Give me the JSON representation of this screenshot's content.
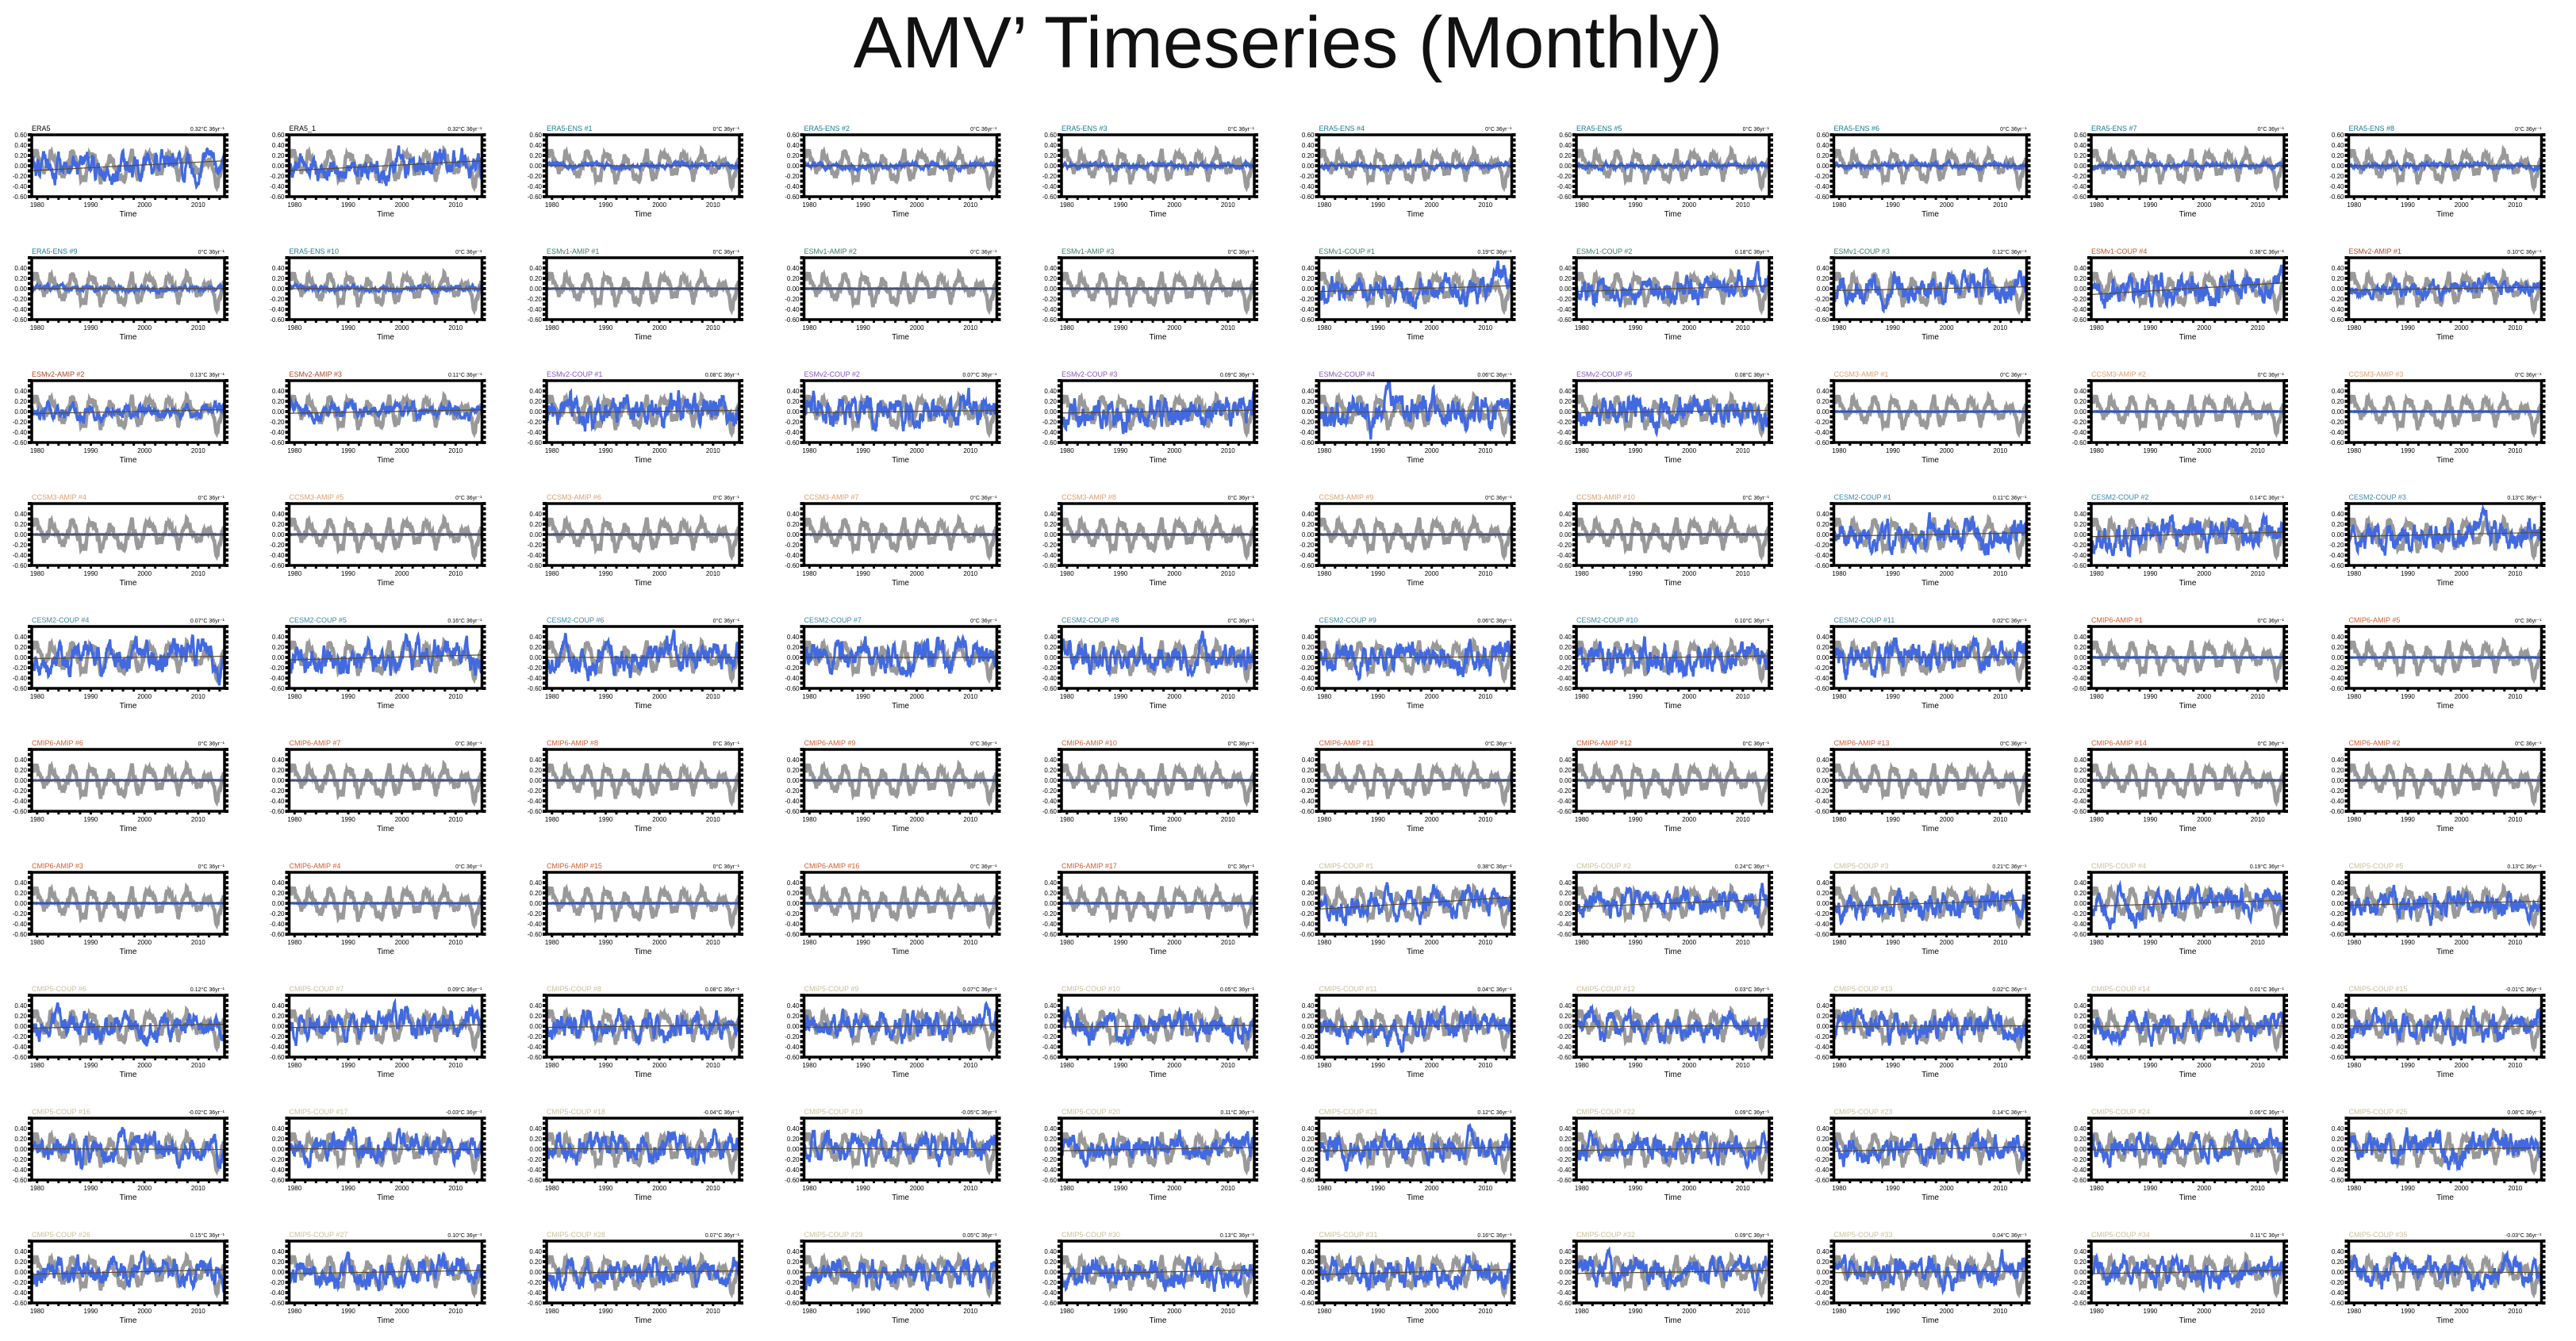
{
  "title": "AMV’ Timeseries (Monthly)",
  "colors": {
    "observed": "#999999",
    "model": "#4169e1",
    "trend": "#5a4b2c",
    "axis": "#000000",
    "label_default": "#000000",
    "label_ens": "#1b7a8c",
    "label_esm1": "#3b7b6a",
    "label_esm1_coup": "#c0582a",
    "label_esm2_amip": "#b0452a",
    "label_esm2_coup": "#8a55c0",
    "label_ccsm": "#d8a070",
    "label_cesm2": "#3c88a8",
    "label_cmip6": "#d85a30",
    "label_cmip5": "#c8c09a"
  },
  "chart_data": {
    "type": "line",
    "layout": "small-multiples-10x10",
    "xlabel": "Time",
    "xticks": [
      1980,
      1990,
      2000,
      2010
    ],
    "xlim": [
      1979,
      2014.9
    ],
    "yticks_top": [
      "0.60",
      "0.40",
      "0.20",
      "0.00",
      "-0.20",
      "-0.40",
      "-0.60"
    ],
    "yticks": [
      "0.40",
      "0.20",
      "0.00",
      "-0.20",
      "-0.40",
      "-0.60"
    ],
    "ylim": [
      -0.6,
      0.6
    ],
    "trend_unit": "°C 36yr⁻¹",
    "panels": [
      {
        "label": "ERA5",
        "group": "default",
        "trend": "0.32",
        "amp": 1.6,
        "seed": 1
      },
      {
        "label": "ERA5_1",
        "group": "default",
        "trend": "0.32",
        "amp": 1.6,
        "seed": 2
      },
      {
        "label": "ERA5-ENS #1",
        "group": "ens",
        "trend": "0",
        "amp": 0.35,
        "seed": 3
      },
      {
        "label": "ERA5-ENS #2",
        "group": "ens",
        "trend": "0",
        "amp": 0.35,
        "seed": 4
      },
      {
        "label": "ERA5-ENS #3",
        "group": "ens",
        "trend": "0",
        "amp": 0.35,
        "seed": 5
      },
      {
        "label": "ERA5-ENS #4",
        "group": "ens",
        "trend": "0",
        "amp": 0.35,
        "seed": 6
      },
      {
        "label": "ERA5-ENS #5",
        "group": "ens",
        "trend": "0",
        "amp": 0.35,
        "seed": 7
      },
      {
        "label": "ERA5-ENS #6",
        "group": "ens",
        "trend": "0",
        "amp": 0.35,
        "seed": 8
      },
      {
        "label": "ERA5-ENS #7",
        "group": "ens",
        "trend": "0",
        "amp": 0.35,
        "seed": 9
      },
      {
        "label": "ERA5-ENS #8",
        "group": "ens",
        "trend": "0",
        "amp": 0.35,
        "seed": 10
      },
      {
        "label": "ERA5-ENS #9",
        "group": "ens",
        "trend": "0",
        "amp": 0.35,
        "seed": 11
      },
      {
        "label": "ERA5-ENS #10",
        "group": "ens",
        "trend": "0",
        "amp": 0.35,
        "seed": 12
      },
      {
        "label": "ESMv1-AMIP #1",
        "group": "esm1",
        "trend": "0",
        "amp": 0.05,
        "seed": 13
      },
      {
        "label": "ESMv1-AMIP #2",
        "group": "esm1",
        "trend": "0",
        "amp": 0.05,
        "seed": 14
      },
      {
        "label": "ESMv1-AMIP #3",
        "group": "esm1",
        "trend": "0",
        "amp": 0.05,
        "seed": 15
      },
      {
        "label": "ESMv1-COUP #1",
        "group": "esm1",
        "trend": "0.19",
        "amp": 1.7,
        "seed": 16
      },
      {
        "label": "ESMv1-COUP #2",
        "group": "esm1",
        "trend": "0.18",
        "amp": 1.7,
        "seed": 17
      },
      {
        "label": "ESMv1-COUP #3",
        "group": "esm1",
        "trend": "0.12",
        "amp": 1.7,
        "seed": 18
      },
      {
        "label": "ESMv1-COUP #4",
        "group": "esm1_coup",
        "trend": "0.38",
        "amp": 1.8,
        "seed": 19
      },
      {
        "label": "ESMv2-AMIP #1",
        "group": "esm2_amip",
        "trend": "0.10",
        "amp": 1.0,
        "seed": 20
      },
      {
        "label": "ESMv2-AMIP #2",
        "group": "esm2_amip",
        "trend": "0.13",
        "amp": 1.0,
        "seed": 21
      },
      {
        "label": "ESMv2-AMIP #3",
        "group": "esm2_amip",
        "trend": "0.11",
        "amp": 1.0,
        "seed": 22
      },
      {
        "label": "ESMv2-COUP #1",
        "group": "esm2_coup",
        "trend": "0.08",
        "amp": 1.9,
        "seed": 23
      },
      {
        "label": "ESMv2-COUP #2",
        "group": "esm2_coup",
        "trend": "0.07",
        "amp": 1.9,
        "seed": 24
      },
      {
        "label": "ESMv2-COUP #3",
        "group": "esm2_coup",
        "trend": "0.09",
        "amp": 1.9,
        "seed": 25
      },
      {
        "label": "ESMv2-COUP #4",
        "group": "esm2_coup",
        "trend": "0.06",
        "amp": 1.9,
        "seed": 26
      },
      {
        "label": "ESMv2-COUP #5",
        "group": "esm2_coup",
        "trend": "0.08",
        "amp": 1.9,
        "seed": 27
      },
      {
        "label": "CCSM3-AMIP #1",
        "group": "ccsm",
        "trend": "0",
        "amp": 0.05,
        "seed": 28
      },
      {
        "label": "CCSM3-AMIP #2",
        "group": "ccsm",
        "trend": "0",
        "amp": 0.05,
        "seed": 29
      },
      {
        "label": "CCSM3-AMIP #3",
        "group": "ccsm",
        "trend": "0",
        "amp": 0.05,
        "seed": 30
      },
      {
        "label": "CCSM3-AMIP #4",
        "group": "ccsm",
        "trend": "0",
        "amp": 0.05,
        "seed": 31
      },
      {
        "label": "CCSM3-AMIP #5",
        "group": "ccsm",
        "trend": "0",
        "amp": 0.05,
        "seed": 32
      },
      {
        "label": "CCSM3-AMIP #6",
        "group": "ccsm",
        "trend": "0",
        "amp": 0.05,
        "seed": 33
      },
      {
        "label": "CCSM3-AMIP #7",
        "group": "ccsm",
        "trend": "0",
        "amp": 0.05,
        "seed": 34
      },
      {
        "label": "CCSM3-AMIP #8",
        "group": "ccsm",
        "trend": "0",
        "amp": 0.05,
        "seed": 35
      },
      {
        "label": "CCSM3-AMIP #9",
        "group": "ccsm",
        "trend": "0",
        "amp": 0.05,
        "seed": 36
      },
      {
        "label": "CCSM3-AMIP #10",
        "group": "ccsm",
        "trend": "0",
        "amp": 0.05,
        "seed": 37
      },
      {
        "label": "CESM2-COUP #1",
        "group": "cesm2",
        "trend": "0.11",
        "amp": 1.8,
        "seed": 38
      },
      {
        "label": "CESM2-COUP #2",
        "group": "cesm2",
        "trend": "0.14",
        "amp": 1.8,
        "seed": 39
      },
      {
        "label": "CESM2-COUP #3",
        "group": "cesm2",
        "trend": "0.13",
        "amp": 1.8,
        "seed": 40
      },
      {
        "label": "CESM2-COUP #4",
        "group": "cesm2",
        "trend": "0.07",
        "amp": 1.8,
        "seed": 41
      },
      {
        "label": "CESM2-COUP #5",
        "group": "cesm2",
        "trend": "0.16",
        "amp": 1.8,
        "seed": 42
      },
      {
        "label": "CESM2-COUP #6",
        "group": "cesm2",
        "trend": "0",
        "amp": 1.8,
        "seed": 43
      },
      {
        "label": "CESM2-COUP #7",
        "group": "cesm2",
        "trend": "0",
        "amp": 1.8,
        "seed": 44
      },
      {
        "label": "CESM2-COUP #8",
        "group": "cesm2",
        "trend": "0",
        "amp": 1.8,
        "seed": 45
      },
      {
        "label": "CESM2-COUP #9",
        "group": "cesm2",
        "trend": "0.06",
        "amp": 1.8,
        "seed": 46
      },
      {
        "label": "CESM2-COUP #10",
        "group": "cesm2",
        "trend": "0.10",
        "amp": 1.8,
        "seed": 47
      },
      {
        "label": "CESM2-COUP #11",
        "group": "cesm2",
        "trend": "0.02",
        "amp": 1.8,
        "seed": 48
      },
      {
        "label": "CMIP6-AMIP #1",
        "group": "cmip6",
        "trend": "0",
        "amp": 0.05,
        "seed": 49
      },
      {
        "label": "CMIP6-AMIP #5",
        "group": "cmip6",
        "trend": "0",
        "amp": 0.05,
        "seed": 50
      },
      {
        "label": "CMIP6-AMIP #6",
        "group": "cmip6",
        "trend": "0",
        "amp": 0.05,
        "seed": 51
      },
      {
        "label": "CMIP6-AMIP #7",
        "group": "cmip6",
        "trend": "0",
        "amp": 0.05,
        "seed": 52
      },
      {
        "label": "CMIP6-AMIP #8",
        "group": "cmip6",
        "trend": "0",
        "amp": 0.05,
        "seed": 53
      },
      {
        "label": "CMIP6-AMIP #9",
        "group": "cmip6",
        "trend": "0",
        "amp": 0.05,
        "seed": 54
      },
      {
        "label": "CMIP6-AMIP #10",
        "group": "cmip6",
        "trend": "0",
        "amp": 0.05,
        "seed": 55
      },
      {
        "label": "CMIP6-AMIP #11",
        "group": "cmip6",
        "trend": "0",
        "amp": 0.05,
        "seed": 56
      },
      {
        "label": "CMIP6-AMIP #12",
        "group": "cmip6",
        "trend": "0",
        "amp": 0.05,
        "seed": 57
      },
      {
        "label": "CMIP6-AMIP #13",
        "group": "cmip6",
        "trend": "0",
        "amp": 0.05,
        "seed": 58
      },
      {
        "label": "CMIP6-AMIP #14",
        "group": "cmip6",
        "trend": "0",
        "amp": 0.05,
        "seed": 59
      },
      {
        "label": "CMIP6-AMIP #2",
        "group": "cmip6",
        "trend": "0",
        "amp": 0.05,
        "seed": 60
      },
      {
        "label": "CMIP6-AMIP #3",
        "group": "cmip6",
        "trend": "0",
        "amp": 0.05,
        "seed": 61
      },
      {
        "label": "CMIP6-AMIP #4",
        "group": "cmip6",
        "trend": "0",
        "amp": 0.05,
        "seed": 62
      },
      {
        "label": "CMIP6-AMIP #15",
        "group": "cmip6",
        "trend": "0",
        "amp": 0.05,
        "seed": 63
      },
      {
        "label": "CMIP6-AMIP #16",
        "group": "cmip6",
        "trend": "0",
        "amp": 0.05,
        "seed": 64
      },
      {
        "label": "CMIP6-AMIP #17",
        "group": "cmip6",
        "trend": "0",
        "amp": 0.05,
        "seed": 65
      },
      {
        "label": "CMIP5-COUP #1",
        "group": "cmip5",
        "trend": "0.38",
        "amp": 1.6,
        "seed": 66
      },
      {
        "label": "CMIP5-COUP #2",
        "group": "cmip5",
        "trend": "0.24",
        "amp": 1.6,
        "seed": 67
      },
      {
        "label": "CMIP5-COUP #3",
        "group": "cmip5",
        "trend": "0.21",
        "amp": 1.6,
        "seed": 68
      },
      {
        "label": "CMIP5-COUP #4",
        "group": "cmip5",
        "trend": "0.19",
        "amp": 1.6,
        "seed": 69
      },
      {
        "label": "CMIP5-COUP #5",
        "group": "cmip5",
        "trend": "0.13",
        "amp": 1.6,
        "seed": 70
      },
      {
        "label": "CMIP5-COUP #6",
        "group": "cmip5",
        "trend": "0.12",
        "amp": 1.6,
        "seed": 71
      },
      {
        "label": "CMIP5-COUP #7",
        "group": "cmip5",
        "trend": "0.09",
        "amp": 1.6,
        "seed": 72
      },
      {
        "label": "CMIP5-COUP #8",
        "group": "cmip5",
        "trend": "0.08",
        "amp": 1.6,
        "seed": 73
      },
      {
        "label": "CMIP5-COUP #9",
        "group": "cmip5",
        "trend": "0.07",
        "amp": 1.6,
        "seed": 74
      },
      {
        "label": "CMIP5-COUP #10",
        "group": "cmip5",
        "trend": "0.05",
        "amp": 1.6,
        "seed": 75
      },
      {
        "label": "CMIP5-COUP #11",
        "group": "cmip5",
        "trend": "0.04",
        "amp": 1.6,
        "seed": 76
      },
      {
        "label": "CMIP5-COUP #12",
        "group": "cmip5",
        "trend": "0.03",
        "amp": 1.6,
        "seed": 77
      },
      {
        "label": "CMIP5-COUP #13",
        "group": "cmip5",
        "trend": "0.02",
        "amp": 1.6,
        "seed": 78
      },
      {
        "label": "CMIP5-COUP #14",
        "group": "cmip5",
        "trend": "0.01",
        "amp": 1.6,
        "seed": 79
      },
      {
        "label": "CMIP5-COUP #15",
        "group": "cmip5",
        "trend": "-0.01",
        "amp": 1.6,
        "seed": 80
      },
      {
        "label": "CMIP5-COUP #16",
        "group": "cmip5",
        "trend": "-0.02",
        "amp": 1.6,
        "seed": 81
      },
      {
        "label": "CMIP5-COUP #17",
        "group": "cmip5",
        "trend": "-0.03",
        "amp": 1.6,
        "seed": 82
      },
      {
        "label": "CMIP5-COUP #18",
        "group": "cmip5",
        "trend": "-0.04",
        "amp": 1.6,
        "seed": 83
      },
      {
        "label": "CMIP5-COUP #19",
        "group": "cmip5",
        "trend": "-0.05",
        "amp": 1.6,
        "seed": 84
      },
      {
        "label": "CMIP5-COUP #20",
        "group": "cmip5",
        "trend": "0.11",
        "amp": 1.6,
        "seed": 85
      },
      {
        "label": "CMIP5-COUP #21",
        "group": "cmip5",
        "trend": "0.12",
        "amp": 1.6,
        "seed": 86
      },
      {
        "label": "CMIP5-COUP #22",
        "group": "cmip5",
        "trend": "0.09",
        "amp": 1.6,
        "seed": 87
      },
      {
        "label": "CMIP5-COUP #23",
        "group": "cmip5",
        "trend": "0.14",
        "amp": 1.6,
        "seed": 88
      },
      {
        "label": "CMIP5-COUP #24",
        "group": "cmip5",
        "trend": "0.06",
        "amp": 1.6,
        "seed": 89
      },
      {
        "label": "CMIP5-COUP #25",
        "group": "cmip5",
        "trend": "0.08",
        "amp": 1.6,
        "seed": 90
      },
      {
        "label": "CMIP5-COUP #26",
        "group": "cmip5",
        "trend": "0.15",
        "amp": 1.6,
        "seed": 91
      },
      {
        "label": "CMIP5-COUP #27",
        "group": "cmip5",
        "trend": "0.10",
        "amp": 1.6,
        "seed": 92
      },
      {
        "label": "CMIP5-COUP #28",
        "group": "cmip5",
        "trend": "0.07",
        "amp": 1.6,
        "seed": 93
      },
      {
        "label": "CMIP5-COUP #29",
        "group": "cmip5",
        "trend": "0.05",
        "amp": 1.6,
        "seed": 94
      },
      {
        "label": "CMIP5-COUP #30",
        "group": "cmip5",
        "trend": "0.13",
        "amp": 1.6,
        "seed": 95
      },
      {
        "label": "CMIP5-COUP #31",
        "group": "cmip5",
        "trend": "0.16",
        "amp": 1.6,
        "seed": 96
      },
      {
        "label": "CMIP5-COUP #32",
        "group": "cmip5",
        "trend": "0.09",
        "amp": 1.6,
        "seed": 97
      },
      {
        "label": "CMIP5-COUP #33",
        "group": "cmip5",
        "trend": "0.04",
        "amp": 1.6,
        "seed": 98
      },
      {
        "label": "CMIP5-COUP #34",
        "group": "cmip5",
        "trend": "0.11",
        "amp": 1.6,
        "seed": 99
      },
      {
        "label": "CMIP5-COUP #35",
        "group": "cmip5",
        "trend": "-0.03",
        "amp": 1.6,
        "seed": 100
      }
    ]
  }
}
